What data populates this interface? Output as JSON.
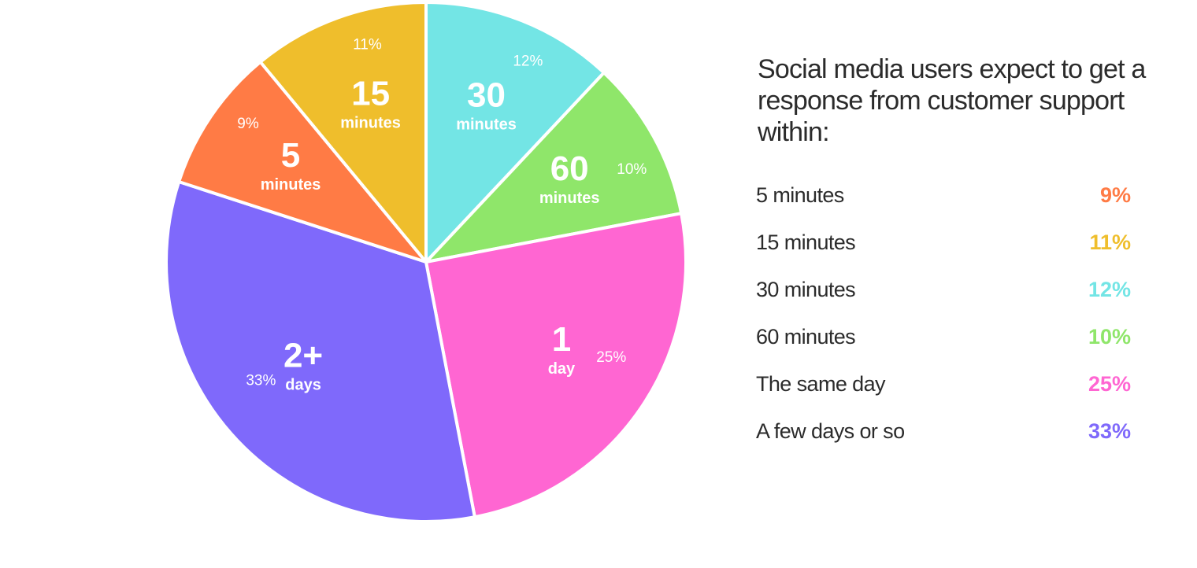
{
  "colors": {
    "text": "#2b2b2b",
    "slice_border": "#ffffff"
  },
  "heading": "Social media users expect to get a response from customer support within:",
  "legend": [
    {
      "label": "5 minutes",
      "value": "9%",
      "color": "#FF7B45"
    },
    {
      "label": "15 minutes",
      "value": "11%",
      "color": "#EFBE2C"
    },
    {
      "label": "30 minutes",
      "value": "12%",
      "color": "#73E5E5"
    },
    {
      "label": "60 minutes",
      "value": "10%",
      "color": "#8FE66A"
    },
    {
      "label": "The same day",
      "value": "25%",
      "color": "#FF66D2"
    },
    {
      "label": "A few days or so",
      "value": "33%",
      "color": "#7F69FB"
    }
  ],
  "chart_data": {
    "type": "pie",
    "start": "12 o'clock",
    "direction": "clockwise",
    "slices": [
      {
        "big": "30",
        "small": "minutes",
        "percent_label": "12%",
        "value": 12,
        "color": "#73E5E5"
      },
      {
        "big": "60",
        "small": "minutes",
        "percent_label": "10%",
        "value": 10,
        "color": "#8FE66A"
      },
      {
        "big": "1",
        "small": "day",
        "percent_label": "25%",
        "value": 25,
        "color": "#FF66D2"
      },
      {
        "big": "2+",
        "small": "days",
        "percent_label": "33%",
        "value": 33,
        "color": "#7F69FB"
      },
      {
        "big": "5",
        "small": "minutes",
        "percent_label": "9%",
        "value": 9,
        "color": "#FF7B45"
      },
      {
        "big": "15",
        "small": "minutes",
        "percent_label": "11%",
        "value": 11,
        "color": "#EFBE2C"
      }
    ]
  }
}
